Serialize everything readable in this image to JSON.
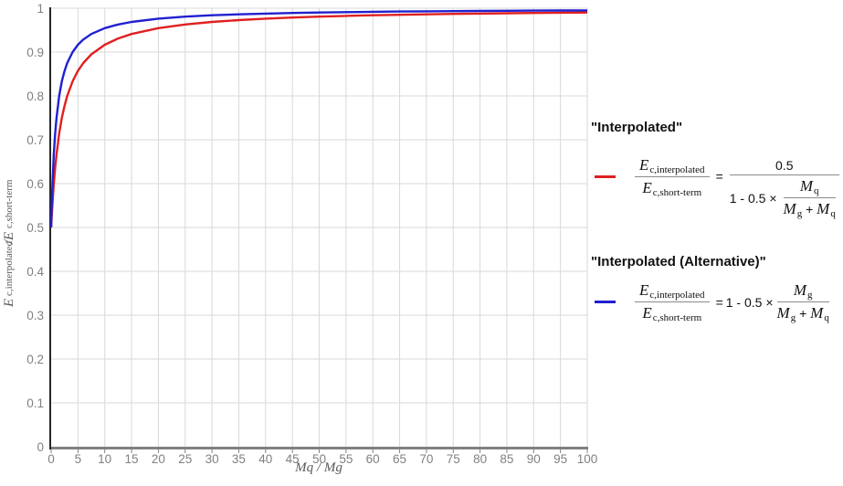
{
  "chart": {
    "x_title": "Mq / Mg",
    "y_title": {
      "var1": "E",
      "sub1": "c,interpolated",
      "sep": " / ",
      "var2": "E",
      "sub2": "c,short-term"
    }
  },
  "legend": {
    "items": [
      {
        "title": "\"Interpolated\"",
        "swatch_color": "#e02020",
        "formula": {
          "lhs": {
            "num_var": "E",
            "num_sub": "c,interpolated",
            "den_var": "E",
            "den_sub": "c,short-term"
          },
          "equals": "=",
          "rhs": {
            "numerator": "0.5",
            "den_prefix": "1 - 0.5 ×",
            "inner": {
              "num_var": "M",
              "num_sub": "q",
              "den_var1": "M",
              "den_sub1": "g",
              "plus": "+",
              "den_var2": "M",
              "den_sub2": "q"
            }
          }
        }
      },
      {
        "title": "\"Interpolated (Alternative)\"",
        "swatch_color": "#2020d0",
        "formula": {
          "lhs": {
            "num_var": "E",
            "num_sub": "c,interpolated",
            "den_var": "E",
            "den_sub": "c,short-term"
          },
          "equals": "=",
          "rhs": {
            "prefix": "1 - 0.5 ×",
            "inner": {
              "num_var": "M",
              "num_sub": "g",
              "den_var1": "M",
              "den_sub1": "g",
              "plus": "+",
              "den_var2": "M",
              "den_sub2": "q"
            }
          }
        }
      }
    ]
  },
  "chart_data": {
    "type": "line",
    "title": "",
    "xlabel": "Mq / Mg",
    "ylabel": "Ec,interpolated / Ec,short-term",
    "xlim": [
      0,
      100
    ],
    "ylim": [
      0,
      1
    ],
    "grid": true,
    "legend_position": "right",
    "x_ticks": [
      0,
      5,
      10,
      15,
      20,
      25,
      30,
      35,
      40,
      45,
      50,
      55,
      60,
      65,
      70,
      75,
      80,
      85,
      90,
      95,
      100
    ],
    "y_ticks": [
      0,
      0.1,
      0.2,
      0.3,
      0.4,
      0.5,
      0.6,
      0.7,
      0.8,
      0.9,
      1
    ],
    "x": [
      0,
      0.1,
      0.25,
      0.5,
      0.75,
      1,
      1.5,
      2,
      2.5,
      3,
      4,
      5,
      6,
      7.5,
      10,
      12.5,
      15,
      20,
      25,
      30,
      35,
      40,
      45,
      50,
      55,
      60,
      65,
      70,
      75,
      80,
      85,
      90,
      95,
      100
    ],
    "series": [
      {
        "name": "Interpolated",
        "color": "#e02020",
        "formula": "Ec,interpolated/Ec,short-term = 0.5 / (1 - 0.5 × Mq/(Mg+Mq))",
        "values": [
          0.5,
          0.5238,
          0.5556,
          0.6,
          0.6364,
          0.6667,
          0.7143,
          0.75,
          0.7778,
          0.8,
          0.8333,
          0.8571,
          0.875,
          0.8947,
          0.9167,
          0.931,
          0.9412,
          0.9545,
          0.963,
          0.9688,
          0.973,
          0.9762,
          0.9787,
          0.9808,
          0.9825,
          0.9839,
          0.9851,
          0.9861,
          0.987,
          0.9878,
          0.9885,
          0.9891,
          0.9897,
          0.9902
        ]
      },
      {
        "name": "Interpolated (Alternative)",
        "color": "#2020d0",
        "formula": "Ec,interpolated/Ec,short-term = 1 - 0.5 × Mg/(Mg+Mq)",
        "values": [
          0.5,
          0.5455,
          0.6,
          0.6667,
          0.7143,
          0.75,
          0.8,
          0.8333,
          0.8571,
          0.875,
          0.9,
          0.9167,
          0.9286,
          0.9412,
          0.9545,
          0.963,
          0.9688,
          0.9762,
          0.9808,
          0.9839,
          0.9861,
          0.9878,
          0.9891,
          0.9902,
          0.9911,
          0.9918,
          0.9924,
          0.993,
          0.9934,
          0.9938,
          0.9942,
          0.9945,
          0.9948,
          0.995
        ]
      }
    ],
    "colors": {
      "gridline": "#d9d9d9",
      "x_axis": "#808080",
      "y_axis": "#262626",
      "tick_label": "#808080",
      "axis_title": "#595959"
    }
  }
}
